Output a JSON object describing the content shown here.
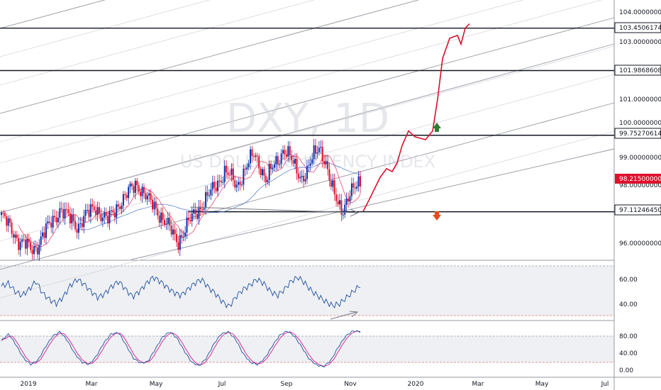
{
  "watermark": {
    "symbol": "DXY, 1D",
    "description": "US DOLLAR CURRENCY INDEX"
  },
  "colors": {
    "up": "#0d2fa8",
    "down": "#e0102e",
    "projection": "#d8102a",
    "sma": "#e84a6a",
    "sma_long": "#4a78c8",
    "rsi": "#1b4fa0",
    "stoch_k": "#1b4fa0",
    "stoch_d": "#d81b8c",
    "level_line": "#131722",
    "arrow_up": "#2e7d32",
    "arrow_down": "#e64a19",
    "last_price_bg": "#e0102e"
  },
  "price_axis": {
    "ticks": [
      "104.00000000",
      "103.00000000",
      "101.00000000",
      "100.00000000",
      "99.00000000",
      "98.00000000",
      "96.00000000"
    ]
  },
  "levels": [
    {
      "label": "103.45061745",
      "value": 103.45061745
    },
    {
      "label": "101.98686089",
      "value": 101.98686089
    },
    {
      "label": "99.75270614",
      "value": 99.75270614
    },
    {
      "label": "97.11246450",
      "value": 97.1124645
    }
  ],
  "last_price": {
    "label": "98.21500000",
    "value": 98.215
  },
  "rsi_axis": {
    "ticks": [
      "60.00",
      "40.00"
    ]
  },
  "stoch_axis": {
    "ticks": [
      "80.00",
      "40.00",
      "0.00"
    ]
  },
  "time_axis": {
    "labels": [
      "2019",
      "Mar",
      "May",
      "Jul",
      "Sep",
      "Nov",
      "2020",
      "Mar",
      "May",
      "Jul"
    ]
  },
  "chart_data": {
    "type": "line",
    "title": "DXY, 1D",
    "subtitle": "US DOLLAR CURRENCY INDEX",
    "price_range": [
      95.5,
      104.3
    ],
    "horizontal_levels": [
      103.45061745,
      101.98686089,
      99.75270614,
      97.1124645
    ],
    "last_price": 98.215,
    "price_closes_approx": [
      97.0,
      96.7,
      96.4,
      96.1,
      96.0,
      95.8,
      95.9,
      96.3,
      96.6,
      96.9,
      97.2,
      97.0,
      96.8,
      96.6,
      96.9,
      97.1,
      97.3,
      97.0,
      96.8,
      97.1,
      97.4,
      97.6,
      97.9,
      98.1,
      97.8,
      97.5,
      97.3,
      97.0,
      96.7,
      96.4,
      96.1,
      96.4,
      96.8,
      97.1,
      97.3,
      97.6,
      97.9,
      98.2,
      98.5,
      98.3,
      98.0,
      98.4,
      98.8,
      99.1,
      98.7,
      98.2,
      98.6,
      98.9,
      99.3,
      99.0,
      98.6,
      98.3,
      98.5,
      99.0,
      99.4,
      98.9,
      98.0,
      97.5,
      97.2,
      97.6,
      97.9,
      98.2
    ],
    "projection_path_approx": [
      97.12,
      97.5,
      97.9,
      98.3,
      98.6,
      98.5,
      98.8,
      99.4,
      99.9,
      99.7,
      99.6,
      99.9,
      101.0,
      102.4,
      103.1,
      103.2,
      102.9,
      103.45,
      103.6
    ],
    "rsi_range": [
      25,
      75
    ],
    "rsi_levels": [
      70,
      30
    ],
    "rsi_approx": [
      55,
      58,
      50,
      46,
      52,
      60,
      48,
      42,
      38,
      45,
      56,
      62,
      57,
      50,
      44,
      48,
      55,
      60,
      52,
      45,
      50,
      58,
      64,
      60,
      54,
      49,
      46,
      52,
      58,
      62,
      54,
      48,
      40,
      35,
      45,
      52,
      56,
      62,
      58,
      50,
      46,
      52,
      60,
      64,
      58,
      50,
      45,
      40,
      36,
      38,
      44,
      50,
      56
    ],
    "stoch_range": [
      -10,
      110
    ],
    "stoch_levels": [
      80,
      20
    ],
    "stoch_k_approx": [
      70,
      85,
      60,
      30,
      15,
      25,
      55,
      80,
      90,
      70,
      40,
      20,
      15,
      35,
      65,
      85,
      88,
      60,
      30,
      18,
      22,
      50,
      78,
      90,
      75,
      45,
      20,
      12,
      30,
      62,
      85,
      90,
      72,
      40,
      20,
      15,
      30,
      58,
      82,
      92,
      80,
      55,
      28,
      14,
      10,
      25,
      55,
      80,
      92,
      90
    ]
  }
}
